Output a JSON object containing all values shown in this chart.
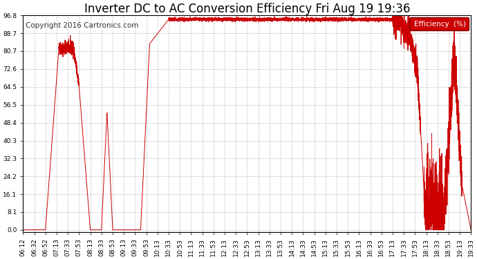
{
  "title": "Inverter DC to AC Conversion Efficiency Fri Aug 19 19:36",
  "copyright": "Copyright 2016 Cartronics.com",
  "legend_label": "Efficiency  (%)",
  "legend_bg": "#cc0000",
  "legend_fg": "#ffffff",
  "line_color": "#cc0000",
  "bg_color": "#ffffff",
  "plot_bg": "#ffffff",
  "grid_color": "#c0c0c0",
  "yticks": [
    0.0,
    8.1,
    16.1,
    24.2,
    32.3,
    40.3,
    48.4,
    56.5,
    64.5,
    72.6,
    80.7,
    88.7,
    96.8
  ],
  "ylim": [
    -1.0,
    96.8
  ],
  "title_fontsize": 12,
  "copyright_fontsize": 7.5,
  "tick_fontsize": 6.5,
  "xtick_labels": [
    "06:12",
    "06:32",
    "06:52",
    "07:13",
    "07:33",
    "07:53",
    "08:13",
    "08:33",
    "08:53",
    "09:13",
    "09:33",
    "09:53",
    "10:13",
    "10:33",
    "10:53",
    "11:13",
    "11:33",
    "11:53",
    "12:13",
    "12:33",
    "12:53",
    "13:13",
    "13:33",
    "13:53",
    "14:13",
    "14:33",
    "14:53",
    "15:13",
    "15:33",
    "15:53",
    "16:13",
    "16:33",
    "16:53",
    "17:13",
    "17:33",
    "17:53",
    "18:13",
    "18:33",
    "18:53",
    "19:13",
    "19:33"
  ]
}
